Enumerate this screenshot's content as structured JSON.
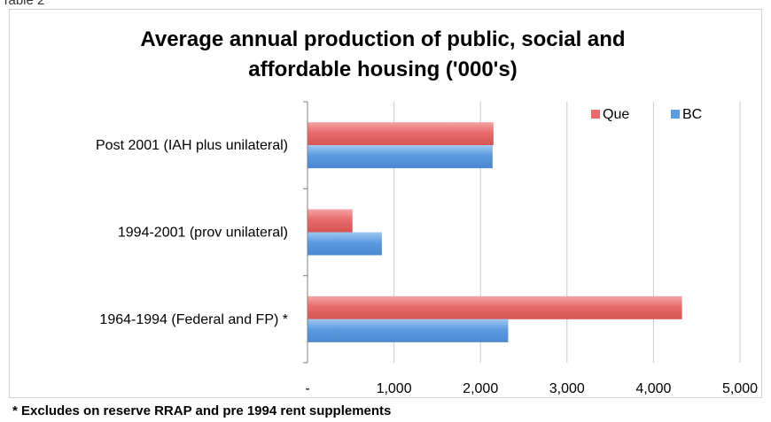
{
  "header_label": "Table 2",
  "footnote": "* Excludes on reserve RRAP and pre 1994 rent supplements",
  "chart_data": {
    "type": "bar",
    "orientation": "horizontal",
    "title_lines": [
      "Average annual production of public, social and",
      "affordable housing ('000's)"
    ],
    "categories": [
      "Post 2001 (IAH plus unilateral)",
      "1994-2001 (prov unilateral)",
      "1964-1994 (Federal and FP) *"
    ],
    "series": [
      {
        "name": "Que",
        "color": "#e86b6b",
        "values": [
          2150,
          520,
          4330
        ]
      },
      {
        "name": "BC",
        "color": "#5b9be0",
        "values": [
          2140,
          860,
          2320
        ]
      }
    ],
    "xlim": [
      0,
      5000
    ],
    "xticks": [
      0,
      1000,
      2000,
      3000,
      4000,
      5000
    ],
    "xtick_labels": [
      "-",
      "1,000",
      "2,000",
      "3,000",
      "4,000",
      "5,000"
    ],
    "grid": "vertical",
    "legend_position": "top-right"
  }
}
